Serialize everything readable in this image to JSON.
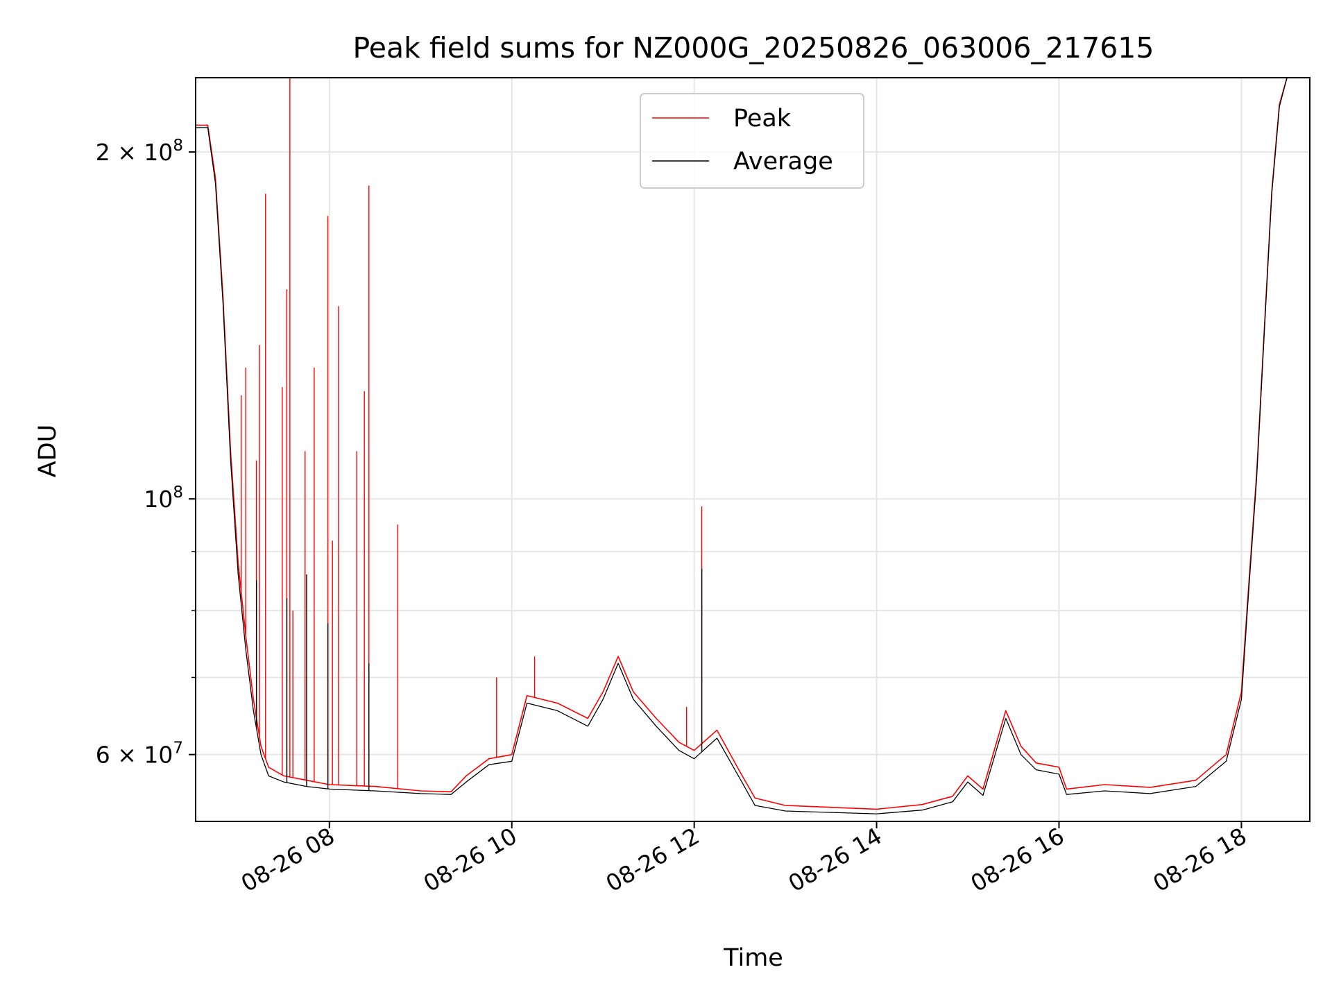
{
  "chart_data": {
    "type": "line",
    "title": "Peak field sums for NZ000G_20250826_063006_217615",
    "xlabel": "Time",
    "ylabel": "ADU",
    "y_scale": "log",
    "xlim": [
      "08-26 06:32",
      "08-26 18:45"
    ],
    "ylim": [
      52500000,
      232000000
    ],
    "x_ticks": [
      "08-26 08",
      "08-26 10",
      "08-26 12",
      "08-26 14",
      "08-26 16",
      "08-26 18"
    ],
    "x_tick_rotation": 30,
    "y_major_ticks": [
      {
        "value": 60000000,
        "mantissa": "6",
        "exp": "7"
      },
      {
        "value": 100000000,
        "mantissa": "",
        "exp": "8"
      },
      {
        "value": 200000000,
        "mantissa": "2",
        "exp": "8"
      }
    ],
    "y_minor_gridlines": [
      70000000,
      80000000,
      90000000
    ],
    "grid": true,
    "legend_position": "top-center",
    "series": [
      {
        "name": "Peak",
        "color": "#ff0000",
        "points": [
          [
            "08-26 06:32",
            211000000
          ],
          [
            "08-26 06:40",
            211000000
          ],
          [
            "08-26 06:45",
            190000000
          ],
          [
            "08-26 06:50",
            150000000
          ],
          [
            "08-26 06:55",
            110000000
          ],
          [
            "08-26 07:00",
            88000000
          ],
          [
            "08-26 07:05",
            76000000
          ],
          [
            "08-26 07:10",
            67000000
          ],
          [
            "08-26 07:15",
            61000000
          ],
          [
            "08-26 07:20",
            58500000
          ],
          [
            "08-26 07:30",
            57500000
          ],
          [
            "08-26 07:45",
            57000000
          ],
          [
            "08-26 08:00",
            56500000
          ],
          [
            "08-26 08:30",
            56300000
          ],
          [
            "08-26 09:00",
            55800000
          ],
          [
            "08-26 09:20",
            55700000
          ],
          [
            "08-26 09:30",
            57500000
          ],
          [
            "08-26 09:45",
            59500000
          ],
          [
            "08-26 10:00",
            60000000
          ],
          [
            "08-26 10:10",
            67500000
          ],
          [
            "08-26 10:30",
            66500000
          ],
          [
            "08-26 10:50",
            64500000
          ],
          [
            "08-26 11:00",
            68000000
          ],
          [
            "08-26 11:10",
            73000000
          ],
          [
            "08-26 11:20",
            68000000
          ],
          [
            "08-26 11:35",
            64500000
          ],
          [
            "08-26 11:50",
            61500000
          ],
          [
            "08-26 12:00",
            60500000
          ],
          [
            "08-26 12:15",
            63000000
          ],
          [
            "08-26 12:30",
            58000000
          ],
          [
            "08-26 12:40",
            55000000
          ],
          [
            "08-26 13:00",
            54200000
          ],
          [
            "08-26 14:00",
            53800000
          ],
          [
            "08-26 14:30",
            54300000
          ],
          [
            "08-26 14:50",
            55200000
          ],
          [
            "08-26 15:00",
            57500000
          ],
          [
            "08-26 15:10",
            56000000
          ],
          [
            "08-26 15:25",
            65500000
          ],
          [
            "08-26 15:35",
            61000000
          ],
          [
            "08-26 15:45",
            59000000
          ],
          [
            "08-26 16:00",
            58500000
          ],
          [
            "08-26 16:05",
            56000000
          ],
          [
            "08-26 16:30",
            56500000
          ],
          [
            "08-26 17:00",
            56200000
          ],
          [
            "08-26 17:30",
            57000000
          ],
          [
            "08-26 17:50",
            60000000
          ],
          [
            "08-26 18:00",
            68000000
          ],
          [
            "08-26 18:05",
            85000000
          ],
          [
            "08-26 18:10",
            105000000
          ],
          [
            "08-26 18:15",
            140000000
          ],
          [
            "08-26 18:20",
            185000000
          ],
          [
            "08-26 18:25",
            220000000
          ],
          [
            "08-26 18:30",
            232000000
          ],
          [
            "08-26 18:45",
            232000000
          ]
        ],
        "spikes": [
          [
            "08-26 07:02",
            123000000
          ],
          [
            "08-26 07:05",
            130000000
          ],
          [
            "08-26 07:12",
            108000000
          ],
          [
            "08-26 07:14",
            136000000
          ],
          [
            "08-26 07:18",
            184000000
          ],
          [
            "08-26 07:29",
            125000000
          ],
          [
            "08-26 07:32",
            152000000
          ],
          [
            "08-26 07:34",
            232000000
          ],
          [
            "08-26 07:36",
            80000000
          ],
          [
            "08-26 07:44",
            110000000
          ],
          [
            "08-26 07:50",
            130000000
          ],
          [
            "08-26 07:59",
            176000000
          ],
          [
            "08-26 08:02",
            92000000
          ],
          [
            "08-26 08:06",
            147000000
          ],
          [
            "08-26 08:18",
            110000000
          ],
          [
            "08-26 08:23",
            124000000
          ],
          [
            "08-26 08:26",
            187000000
          ],
          [
            "08-26 08:45",
            95000000
          ],
          [
            "08-26 09:50",
            70000000
          ],
          [
            "08-26 10:15",
            73000000
          ],
          [
            "08-26 11:55",
            66000000
          ],
          [
            "08-26 12:05",
            98500000
          ]
        ]
      },
      {
        "name": "Average",
        "color": "#000000",
        "points": [
          [
            "08-26 06:32",
            210000000
          ],
          [
            "08-26 06:40",
            210000000
          ],
          [
            "08-26 06:45",
            188000000
          ],
          [
            "08-26 06:50",
            148000000
          ],
          [
            "08-26 06:55",
            108000000
          ],
          [
            "08-26 07:00",
            86000000
          ],
          [
            "08-26 07:05",
            74000000
          ],
          [
            "08-26 07:10",
            65500000
          ],
          [
            "08-26 07:15",
            60000000
          ],
          [
            "08-26 07:20",
            57500000
          ],
          [
            "08-26 07:30",
            56800000
          ],
          [
            "08-26 07:45",
            56300000
          ],
          [
            "08-26 08:00",
            56000000
          ],
          [
            "08-26 08:30",
            55800000
          ],
          [
            "08-26 09:00",
            55500000
          ],
          [
            "08-26 09:20",
            55400000
          ],
          [
            "08-26 09:30",
            56800000
          ],
          [
            "08-26 09:45",
            58800000
          ],
          [
            "08-26 10:00",
            59200000
          ],
          [
            "08-26 10:10",
            66500000
          ],
          [
            "08-26 10:30",
            65500000
          ],
          [
            "08-26 10:50",
            63500000
          ],
          [
            "08-26 11:00",
            67000000
          ],
          [
            "08-26 11:10",
            72000000
          ],
          [
            "08-26 11:20",
            67000000
          ],
          [
            "08-26 11:35",
            63500000
          ],
          [
            "08-26 11:50",
            60500000
          ],
          [
            "08-26 12:00",
            59500000
          ],
          [
            "08-26 12:15",
            62000000
          ],
          [
            "08-26 12:30",
            57200000
          ],
          [
            "08-26 12:40",
            54200000
          ],
          [
            "08-26 13:00",
            53600000
          ],
          [
            "08-26 14:00",
            53300000
          ],
          [
            "08-26 14:30",
            53700000
          ],
          [
            "08-26 14:50",
            54600000
          ],
          [
            "08-26 15:00",
            56800000
          ],
          [
            "08-26 15:10",
            55300000
          ],
          [
            "08-26 15:25",
            64500000
          ],
          [
            "08-26 15:35",
            60000000
          ],
          [
            "08-26 15:45",
            58200000
          ],
          [
            "08-26 16:00",
            57700000
          ],
          [
            "08-26 16:05",
            55400000
          ],
          [
            "08-26 16:30",
            55800000
          ],
          [
            "08-26 17:00",
            55500000
          ],
          [
            "08-26 17:30",
            56300000
          ],
          [
            "08-26 17:50",
            59200000
          ],
          [
            "08-26 18:00",
            67000000
          ],
          [
            "08-26 18:05",
            84000000
          ],
          [
            "08-26 18:10",
            104000000
          ],
          [
            "08-26 18:15",
            139000000
          ],
          [
            "08-26 18:20",
            184000000
          ],
          [
            "08-26 18:25",
            219000000
          ],
          [
            "08-26 18:30",
            232000000
          ],
          [
            "08-26 18:45",
            232000000
          ]
        ],
        "spikes": [
          [
            "08-26 07:12",
            85000000
          ],
          [
            "08-26 07:32",
            82000000
          ],
          [
            "08-26 07:45",
            86000000
          ],
          [
            "08-26 07:59",
            78000000
          ],
          [
            "08-26 08:26",
            72000000
          ],
          [
            "08-26 12:05",
            87000000
          ]
        ]
      }
    ]
  }
}
